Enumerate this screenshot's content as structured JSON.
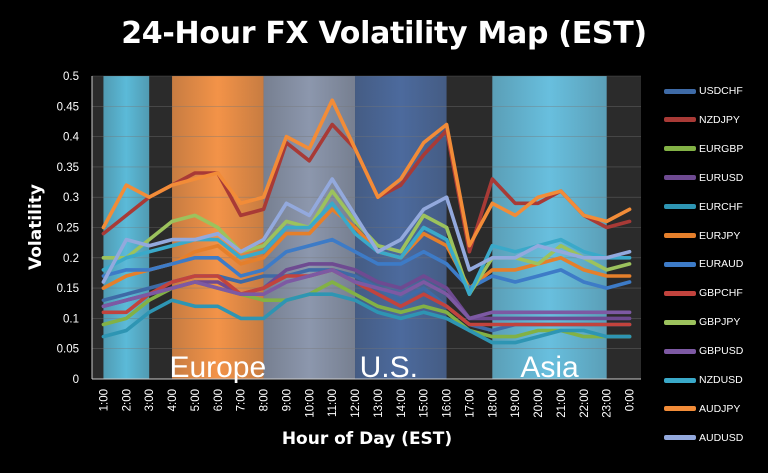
{
  "chart_data": {
    "type": "line",
    "title": "24-Hour FX Volatility Map (EST)",
    "xlabel": "Hour of Day (EST)",
    "ylabel": "Volatility",
    "ylim": [
      0,
      0.5
    ],
    "y_ticks": [
      "0",
      "0.05",
      "0.1",
      "0.15",
      "0.2",
      "0.25",
      "0.3",
      "0.35",
      "0.4",
      "0.45",
      "0.5"
    ],
    "categories": [
      "1:00",
      "2:00",
      "3:00",
      "4:00",
      "5:00",
      "6:00",
      "7:00",
      "8:00",
      "9:00",
      "10:00",
      "11:00",
      "12:00",
      "13:00",
      "14:00",
      "15:00",
      "16:00",
      "17:00",
      "18:00",
      "19:00",
      "20:00",
      "21:00",
      "22:00",
      "23:00",
      "0:00"
    ],
    "grid": true,
    "legend_position": "right",
    "sessions": [
      {
        "label": "",
        "start": 0.5,
        "end": 2.5,
        "color": "#5bbad8"
      },
      {
        "label": "Europe",
        "start": 3.5,
        "end": 7.5,
        "color": "#f39348"
      },
      {
        "label": "",
        "start": 7.5,
        "end": 11.5,
        "color": "#8c97ad"
      },
      {
        "label": "U.S.",
        "start": 11.5,
        "end": 15.5,
        "color": "#4c6a9d"
      },
      {
        "label": "Asia",
        "start": 17.5,
        "end": 22.5,
        "color": "#68bfde"
      }
    ],
    "series": [
      {
        "name": "USDCHF",
        "color": "#3e6aa6",
        "values": [
          0.13,
          0.14,
          0.15,
          0.16,
          0.17,
          0.17,
          0.16,
          0.17,
          0.17,
          0.18,
          0.18,
          0.17,
          0.15,
          0.13,
          0.15,
          0.12,
          0.09,
          0.08,
          0.09,
          0.09,
          0.09,
          0.09,
          0.09,
          0.09
        ]
      },
      {
        "name": "NZDJPY",
        "color": "#a83a36",
        "values": [
          0.24,
          0.27,
          0.3,
          0.32,
          0.34,
          0.34,
          0.27,
          0.28,
          0.39,
          0.36,
          0.42,
          0.38,
          0.3,
          0.32,
          0.37,
          0.41,
          0.21,
          0.33,
          0.29,
          0.29,
          0.31,
          0.27,
          0.25,
          0.26
        ]
      },
      {
        "name": "EURGBP",
        "color": "#82b145",
        "values": [
          0.09,
          0.1,
          0.13,
          0.15,
          0.16,
          0.15,
          0.14,
          0.13,
          0.13,
          0.14,
          0.16,
          0.14,
          0.12,
          0.11,
          0.12,
          0.11,
          0.08,
          0.07,
          0.07,
          0.08,
          0.08,
          0.07,
          0.07,
          0.07
        ]
      },
      {
        "name": "EURUSD",
        "color": "#6e4a91",
        "values": [
          0.12,
          0.13,
          0.14,
          0.15,
          0.16,
          0.16,
          0.14,
          0.15,
          0.18,
          0.19,
          0.19,
          0.18,
          0.16,
          0.15,
          0.17,
          0.15,
          0.1,
          0.1,
          0.1,
          0.1,
          0.1,
          0.1,
          0.1,
          0.1
        ]
      },
      {
        "name": "EURCHF",
        "color": "#2e95b3",
        "values": [
          0.07,
          0.08,
          0.11,
          0.13,
          0.12,
          0.12,
          0.1,
          0.1,
          0.13,
          0.14,
          0.14,
          0.13,
          0.11,
          0.1,
          0.11,
          0.1,
          0.08,
          0.06,
          0.06,
          0.07,
          0.08,
          0.08,
          0.07,
          0.07
        ]
      },
      {
        "name": "EURJPY",
        "color": "#e57f2b",
        "values": [
          0.15,
          0.17,
          0.18,
          0.19,
          0.21,
          0.22,
          0.19,
          0.2,
          0.24,
          0.24,
          0.28,
          0.25,
          0.21,
          0.2,
          0.24,
          0.22,
          0.15,
          0.18,
          0.18,
          0.19,
          0.2,
          0.18,
          0.17,
          0.17
        ]
      },
      {
        "name": "EURAUD",
        "color": "#3d7bc7",
        "values": [
          0.17,
          0.18,
          0.18,
          0.19,
          0.2,
          0.2,
          0.17,
          0.18,
          0.21,
          0.22,
          0.23,
          0.21,
          0.19,
          0.19,
          0.21,
          0.19,
          0.15,
          0.17,
          0.16,
          0.17,
          0.18,
          0.16,
          0.15,
          0.16
        ]
      },
      {
        "name": "GBPCHF",
        "color": "#c2433d",
        "values": [
          0.11,
          0.11,
          0.14,
          0.16,
          0.17,
          0.17,
          0.14,
          0.15,
          0.17,
          0.17,
          0.18,
          0.16,
          0.14,
          0.12,
          0.14,
          0.12,
          0.09,
          0.09,
          0.09,
          0.09,
          0.09,
          0.09,
          0.09,
          0.09
        ]
      },
      {
        "name": "GBPJPY",
        "color": "#9cc25d",
        "values": [
          0.2,
          0.2,
          0.23,
          0.26,
          0.27,
          0.25,
          0.21,
          0.22,
          0.26,
          0.25,
          0.31,
          0.26,
          0.22,
          0.21,
          0.27,
          0.25,
          0.14,
          0.2,
          0.2,
          0.19,
          0.22,
          0.2,
          0.18,
          0.19
        ]
      },
      {
        "name": "GBPUSD",
        "color": "#7d59a3",
        "values": [
          0.12,
          0.13,
          0.14,
          0.15,
          0.16,
          0.15,
          0.14,
          0.14,
          0.16,
          0.17,
          0.18,
          0.16,
          0.15,
          0.14,
          0.16,
          0.14,
          0.1,
          0.11,
          0.11,
          0.11,
          0.11,
          0.11,
          0.11,
          0.11
        ]
      },
      {
        "name": "NZDUSD",
        "color": "#3aa9c9",
        "values": [
          0.18,
          0.2,
          0.21,
          0.22,
          0.23,
          0.23,
          0.2,
          0.21,
          0.25,
          0.25,
          0.29,
          0.24,
          0.21,
          0.2,
          0.25,
          0.23,
          0.14,
          0.22,
          0.21,
          0.22,
          0.23,
          0.21,
          0.2,
          0.2
        ]
      },
      {
        "name": "AUDJPY",
        "color": "#f28c38",
        "values": [
          0.25,
          0.32,
          0.3,
          0.32,
          0.33,
          0.34,
          0.29,
          0.3,
          0.4,
          0.38,
          0.46,
          0.38,
          0.3,
          0.33,
          0.39,
          0.42,
          0.22,
          0.29,
          0.27,
          0.3,
          0.31,
          0.27,
          0.26,
          0.28
        ]
      },
      {
        "name": "AUDUSD",
        "color": "#93a9dd",
        "values": [
          0.16,
          0.23,
          0.22,
          0.23,
          0.23,
          0.24,
          0.21,
          0.23,
          0.29,
          0.27,
          0.33,
          0.27,
          0.21,
          0.23,
          0.28,
          0.3,
          0.18,
          0.2,
          0.2,
          0.22,
          0.21,
          0.2,
          0.2,
          0.21
        ]
      }
    ]
  }
}
